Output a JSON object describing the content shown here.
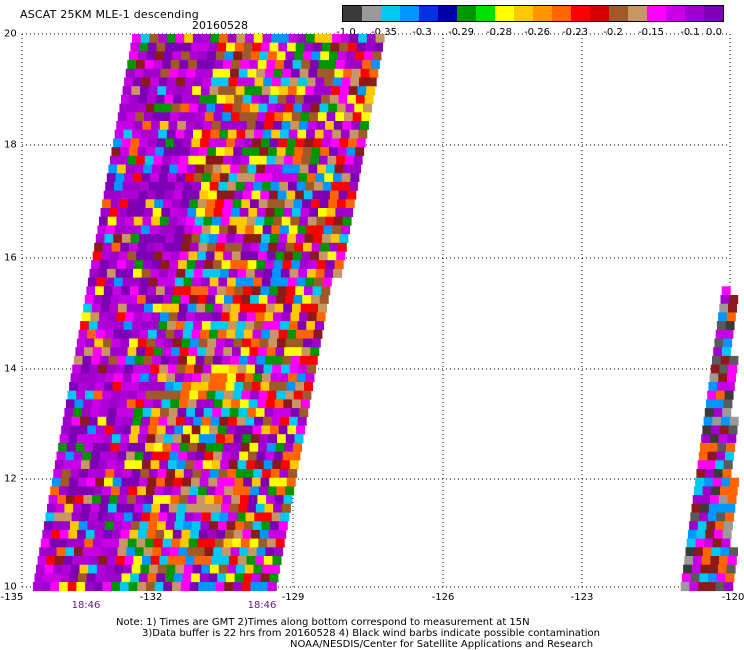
{
  "header": {
    "title": "ASCAT 25KM MLE-1 descending",
    "date": "20160528"
  },
  "colorbar": {
    "colors": [
      "#3a3a3a",
      "#9a9a9a",
      "#00c8f0",
      "#0096ff",
      "#0030e0",
      "#0000a0",
      "#009600",
      "#00e000",
      "#ffff00",
      "#ffc800",
      "#ff9600",
      "#ff6400",
      "#ff0000",
      "#d20000",
      "#a05a28",
      "#c89664",
      "#ff00ff",
      "#c800e6",
      "#a000cc",
      "#7d00b4"
    ],
    "tick_labels": [
      "-1.0",
      "-0.35",
      "-0.3",
      "-0.29",
      "-0.28",
      "-0.26",
      "-0.23",
      "-0.2",
      "-0.15",
      "-0.1",
      "0.0"
    ]
  },
  "axes": {
    "y_ticks": [
      "20",
      "18",
      "16",
      "14",
      "12",
      "10"
    ],
    "x_ticks": [
      "-135",
      "-132",
      "-129",
      "-126",
      "-123",
      "-120"
    ],
    "time_labels": [
      "18:46",
      "18:46"
    ],
    "lat_range": [
      10,
      20
    ],
    "lon_range": [
      -135,
      -120
    ]
  },
  "notes": {
    "line1": "Note: 1) Times are GMT 2)Times along bottom correspond to measurement at 15N",
    "line2": "3)Data buffer is 22 hrs from 20160528 4) Black wind barbs indicate possible contamination",
    "line3": "NOAA/NESDIS/Center for Satellite Applications and Research"
  }
}
